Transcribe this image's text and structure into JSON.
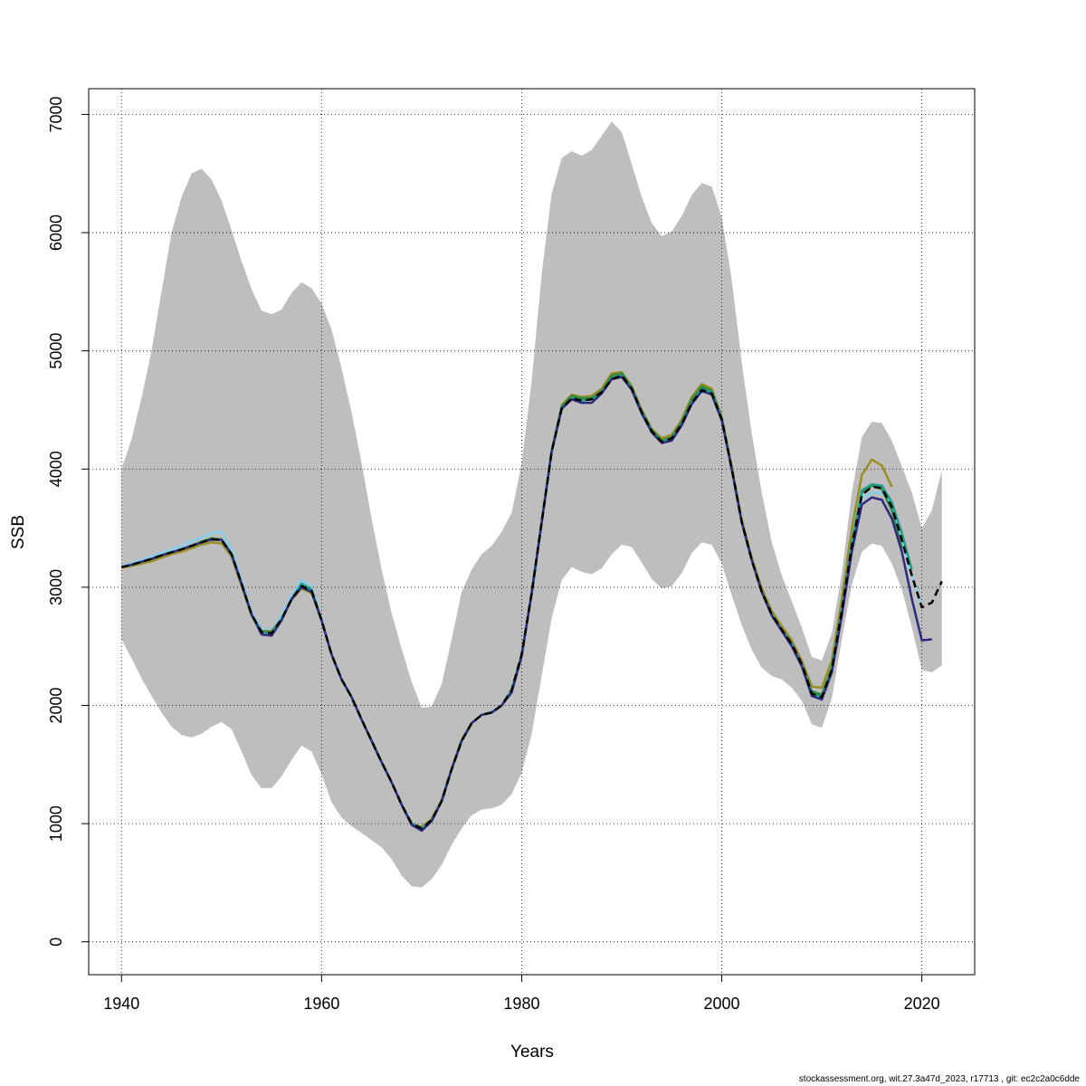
{
  "chart_data": {
    "type": "line",
    "xlabel": "Years",
    "ylabel": "SSB",
    "footnote": "stockassessment.org, wit.27.3a47d_2023, r17713 , git: ec2c2a0c6dde",
    "xlim": [
      1936.72,
      2025.28
    ],
    "xticks": [
      1940,
      1960,
      1980,
      2000,
      2020
    ],
    "ylim": [
      -278,
      7218
    ],
    "yticks": [
      0,
      1000,
      2000,
      3000,
      4000,
      5000,
      6000,
      7000
    ],
    "grid": true,
    "x": [
      1940,
      1941,
      1942,
      1943,
      1944,
      1945,
      1946,
      1947,
      1948,
      1949,
      1950,
      1951,
      1952,
      1953,
      1954,
      1955,
      1956,
      1957,
      1958,
      1959,
      1960,
      1961,
      1962,
      1963,
      1964,
      1965,
      1966,
      1967,
      1968,
      1969,
      1970,
      1971,
      1972,
      1973,
      1974,
      1975,
      1976,
      1977,
      1978,
      1979,
      1980,
      1981,
      1982,
      1983,
      1984,
      1985,
      1986,
      1987,
      1988,
      1989,
      1990,
      1991,
      1992,
      1993,
      1994,
      1995,
      1996,
      1997,
      1998,
      1999,
      2000,
      2001,
      2002,
      2003,
      2004,
      2005,
      2006,
      2007,
      2008,
      2009,
      2010,
      2011,
      2012,
      2013,
      2014,
      2015,
      2016,
      2017,
      2018,
      2019,
      2020,
      2021,
      2022
    ],
    "band": {
      "color": "#bebebe",
      "upper": [
        4000,
        4250,
        4600,
        5000,
        5500,
        6000,
        6300,
        6500,
        6540,
        6450,
        6270,
        6020,
        5760,
        5520,
        5340,
        5310,
        5350,
        5490,
        5580,
        5530,
        5400,
        5180,
        4850,
        4480,
        4050,
        3580,
        3150,
        2780,
        2480,
        2200,
        1980,
        1990,
        2180,
        2560,
        2960,
        3150,
        3280,
        3350,
        3470,
        3630,
        4050,
        4750,
        5650,
        6330,
        6630,
        6690,
        6650,
        6700,
        6820,
        6940,
        6850,
        6580,
        6300,
        6080,
        5970,
        6010,
        6140,
        6320,
        6420,
        6390,
        6130,
        5600,
        4900,
        4300,
        3800,
        3380,
        3100,
        2880,
        2660,
        2410,
        2380,
        2610,
        3120,
        3800,
        4270,
        4400,
        4390,
        4240,
        4020,
        3800,
        3500,
        3650,
        3990
      ],
      "lower": [
        2560,
        2400,
        2230,
        2080,
        1940,
        1820,
        1750,
        1730,
        1760,
        1820,
        1860,
        1800,
        1610,
        1410,
        1300,
        1300,
        1400,
        1540,
        1660,
        1610,
        1420,
        1180,
        1050,
        980,
        920,
        860,
        800,
        700,
        560,
        470,
        460,
        530,
        650,
        820,
        960,
        1070,
        1120,
        1130,
        1160,
        1250,
        1430,
        1760,
        2250,
        2740,
        3060,
        3170,
        3130,
        3110,
        3160,
        3280,
        3360,
        3340,
        3210,
        3070,
        2990,
        3010,
        3120,
        3290,
        3380,
        3360,
        3200,
        2930,
        2680,
        2470,
        2320,
        2250,
        2220,
        2150,
        2040,
        1840,
        1810,
        2060,
        2560,
        3020,
        3300,
        3370,
        3350,
        3200,
        2980,
        2660,
        2300,
        2280,
        2340
      ]
    },
    "series": [
      {
        "color": "#87ceeb",
        "linestyle": "solid",
        "values": [
          3180,
          3200,
          3230,
          3260,
          3290,
          3320,
          3350,
          3390,
          3420,
          3460,
          3470,
          3320,
          3060,
          2790,
          2640,
          2640,
          2760,
          2930,
          3060,
          3010,
          2720,
          2430,
          2220,
          2070,
          1880,
          1700,
          1520,
          1350,
          1160,
          1000,
          960,
          1030,
          1190,
          1460,
          1700,
          1850,
          1920,
          1940,
          2000,
          2130,
          2430,
          2950,
          3550,
          4150,
          4510,
          4600,
          4580,
          4590,
          4650,
          4760,
          4790,
          4680,
          4480,
          4320,
          4230,
          4260,
          4380,
          4560,
          4670,
          4640,
          4420,
          4000,
          3550,
          3230,
          2960,
          2770,
          2640,
          2520,
          2350,
          2100,
          2070,
          2300,
          2800,
          3320,
          3750,
          3800,
          3800,
          3700,
          3420,
          3100,
          2850,
          null,
          null
        ]
      },
      {
        "color": "#9a8f20",
        "linestyle": "solid",
        "values": [
          3165,
          3180,
          3200,
          3220,
          3250,
          3280,
          3300,
          3330,
          3360,
          3380,
          3370,
          3260,
          3010,
          2760,
          2630,
          2630,
          2730,
          2890,
          2990,
          2950,
          2720,
          2430,
          2220,
          2070,
          1880,
          1700,
          1520,
          1350,
          1160,
          1000,
          970,
          1040,
          1200,
          1470,
          1710,
          1850,
          1920,
          1940,
          2000,
          2130,
          2430,
          2950,
          3550,
          4150,
          4540,
          4630,
          4610,
          4620,
          4680,
          4810,
          4820,
          4700,
          4500,
          4340,
          4260,
          4290,
          4420,
          4610,
          4720,
          4680,
          4440,
          4020,
          3570,
          3250,
          2990,
          2800,
          2670,
          2550,
          2380,
          2160,
          2150,
          2380,
          2900,
          3500,
          3950,
          4080,
          4030,
          3850,
          null,
          null,
          null,
          null,
          null
        ]
      },
      {
        "color": "#2e8b3e",
        "linestyle": "solid",
        "values": [
          3170,
          3190,
          3215,
          3240,
          3270,
          3295,
          3320,
          3350,
          3385,
          3415,
          3405,
          3280,
          3030,
          2770,
          2625,
          2620,
          2730,
          2900,
          3030,
          2980,
          2720,
          2430,
          2220,
          2070,
          1880,
          1700,
          1520,
          1350,
          1160,
          1000,
          960,
          1030,
          1190,
          1460,
          1700,
          1850,
          1920,
          1940,
          2000,
          2130,
          2430,
          2950,
          3550,
          4150,
          4530,
          4620,
          4600,
          4600,
          4660,
          4790,
          4810,
          4690,
          4490,
          4330,
          4240,
          4270,
          4400,
          4590,
          4700,
          4660,
          4430,
          4000,
          3550,
          3230,
          2960,
          2770,
          2640,
          2520,
          2350,
          2120,
          2090,
          2320,
          2820,
          3370,
          3800,
          3860,
          3830,
          3650,
          3330,
          null,
          null,
          null,
          null
        ]
      },
      {
        "color": "#1f9e89",
        "linestyle": "solid",
        "values": [
          3170,
          3190,
          3215,
          3240,
          3270,
          3295,
          3320,
          3350,
          3380,
          3405,
          3400,
          3280,
          3030,
          2770,
          2620,
          2615,
          2730,
          2900,
          3030,
          2975,
          2720,
          2430,
          2220,
          2070,
          1880,
          1700,
          1520,
          1350,
          1160,
          1000,
          960,
          1030,
          1190,
          1460,
          1700,
          1850,
          1920,
          1940,
          2000,
          2130,
          2430,
          2950,
          3550,
          4150,
          4510,
          4600,
          4580,
          4590,
          4650,
          4770,
          4790,
          4680,
          4480,
          4320,
          4230,
          4260,
          4380,
          4570,
          4680,
          4650,
          4420,
          4000,
          3550,
          3230,
          2960,
          2770,
          2640,
          2520,
          2350,
          2100,
          2070,
          2300,
          2800,
          3380,
          3820,
          3870,
          3860,
          3720,
          3460,
          3150,
          null,
          null,
          null
        ]
      },
      {
        "color": "#2e2a7e",
        "linestyle": "solid",
        "values": [
          3170,
          3190,
          3215,
          3240,
          3270,
          3295,
          3320,
          3350,
          3380,
          3405,
          3400,
          3280,
          3030,
          2770,
          2600,
          2590,
          2720,
          2900,
          3000,
          2960,
          2720,
          2430,
          2220,
          2070,
          1880,
          1700,
          1520,
          1350,
          1160,
          990,
          940,
          1020,
          1190,
          1460,
          1700,
          1850,
          1920,
          1940,
          2000,
          2110,
          2420,
          2950,
          3550,
          4150,
          4510,
          4590,
          4560,
          4560,
          4640,
          4760,
          4780,
          4670,
          4470,
          4310,
          4220,
          4240,
          4370,
          4550,
          4660,
          4630,
          4410,
          4000,
          3550,
          3230,
          2960,
          2760,
          2630,
          2500,
          2330,
          2080,
          2050,
          2280,
          2760,
          3300,
          3700,
          3760,
          3740,
          3580,
          3300,
          2900,
          2550,
          2560,
          null
        ]
      },
      {
        "color": "#000000",
        "linestyle": "dashed",
        "values": [
          3170,
          3190,
          3215,
          3240,
          3270,
          3295,
          3320,
          3350,
          3380,
          3405,
          3400,
          3280,
          3030,
          2770,
          2620,
          2610,
          2730,
          2900,
          3010,
          2970,
          2720,
          2430,
          2220,
          2070,
          1880,
          1700,
          1520,
          1350,
          1160,
          1000,
          960,
          1030,
          1190,
          1460,
          1700,
          1850,
          1920,
          1940,
          2000,
          2130,
          2430,
          2950,
          3550,
          4150,
          4510,
          4600,
          4580,
          4590,
          4650,
          4760,
          4790,
          4680,
          4480,
          4320,
          4230,
          4260,
          4380,
          4560,
          4670,
          4640,
          4420,
          4000,
          3550,
          3230,
          2960,
          2770,
          2640,
          2520,
          2350,
          2100,
          2070,
          2300,
          2800,
          3350,
          3780,
          3850,
          3840,
          3680,
          3400,
          3100,
          2830,
          2870,
          3050
        ]
      }
    ]
  }
}
